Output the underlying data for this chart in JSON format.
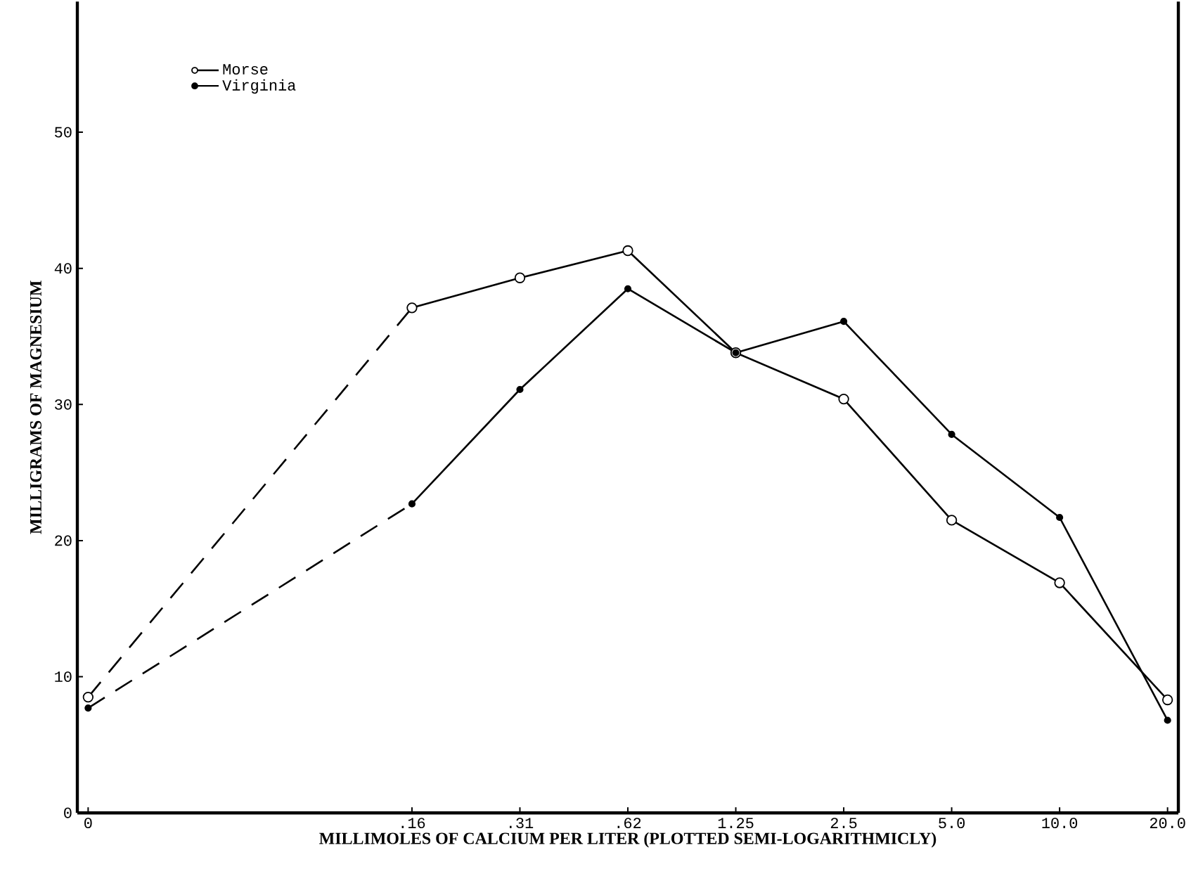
{
  "chart_data": {
    "type": "line",
    "xlabel": "MILLIMOLES OF CALCIUM PER LITER (PLOTTED SEMI-LOGARITHMICLY)",
    "ylabel": "MILLIGRAMS OF MAGNESIUM",
    "categories": [
      "0",
      null,
      null,
      ".16",
      ".31",
      ".62",
      "1.25",
      "2.5",
      "5.0",
      "10.0",
      "20.0"
    ],
    "series": [
      {
        "name": "Morse",
        "color": "#000000",
        "values": [
          8.5,
          null,
          null,
          37.1,
          39.3,
          41.3,
          33.8,
          30.4,
          21.5,
          16.9,
          8.3
        ]
      },
      {
        "name": "Virginia",
        "color": "#000000",
        "values": [
          7.7,
          null,
          null,
          22.7,
          31.1,
          38.5,
          33.8,
          36.1,
          27.8,
          21.7,
          6.8
        ]
      }
    ],
    "ylim": [
      0,
      59.6
    ],
    "yticks": [
      0,
      10,
      20,
      30,
      40,
      50
    ],
    "grid": false,
    "legend": "top left",
    "marker": "circle",
    "line_style": "solid"
  }
}
